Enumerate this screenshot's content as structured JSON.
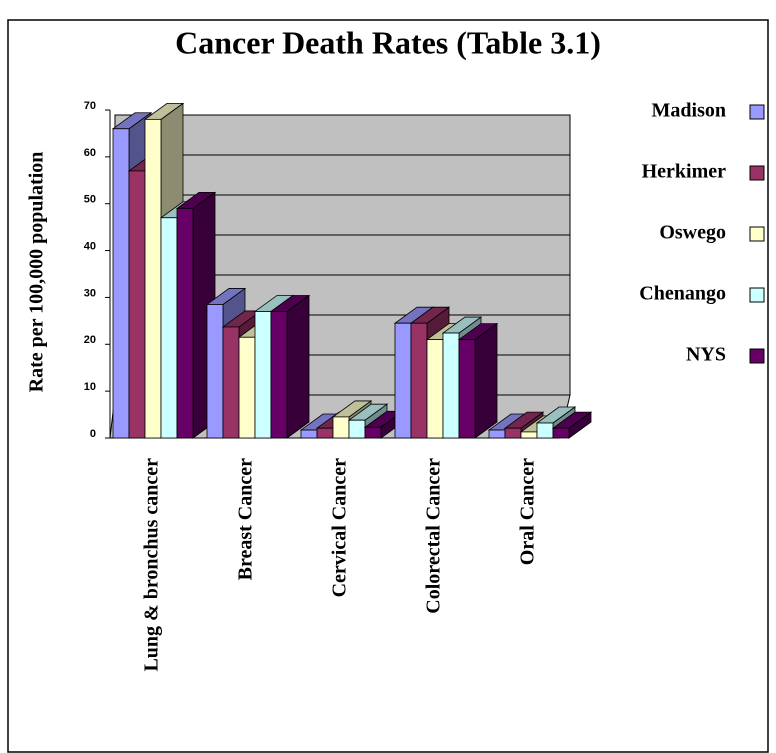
{
  "chart_data": {
    "type": "bar3d",
    "title": "Cancer Death Rates (Table 3.1)",
    "y_label": "Rate per 100,000 population",
    "categories": [
      "Lung & bronchus cancer",
      "Breast Cancer",
      "Cervical Cancer",
      "Colorectal Cancer",
      "Oral Cancer"
    ],
    "series": [
      {
        "name": "Madison",
        "color": "#9999ff",
        "values": [
          66,
          28.5,
          1.7,
          24.5,
          1.7
        ]
      },
      {
        "name": "Herkimer",
        "color": "#993366",
        "values": [
          57,
          23.7,
          2.1,
          24.5,
          2.1
        ]
      },
      {
        "name": "Oswego",
        "color": "#ffffcc",
        "values": [
          68,
          21.5,
          4.5,
          21,
          1.3
        ]
      },
      {
        "name": "Chenango",
        "color": "#ccffff",
        "values": [
          47,
          27,
          3.8,
          22.4,
          3.2
        ]
      },
      {
        "name": "NYS",
        "color": "#660066",
        "values": [
          49,
          27,
          2.3,
          21,
          2.1
        ]
      }
    ],
    "ylim": [
      0,
      70
    ],
    "yticks": [
      0,
      10,
      20,
      30,
      40,
      50,
      60,
      70
    ],
    "grid": true,
    "legend": "right"
  }
}
